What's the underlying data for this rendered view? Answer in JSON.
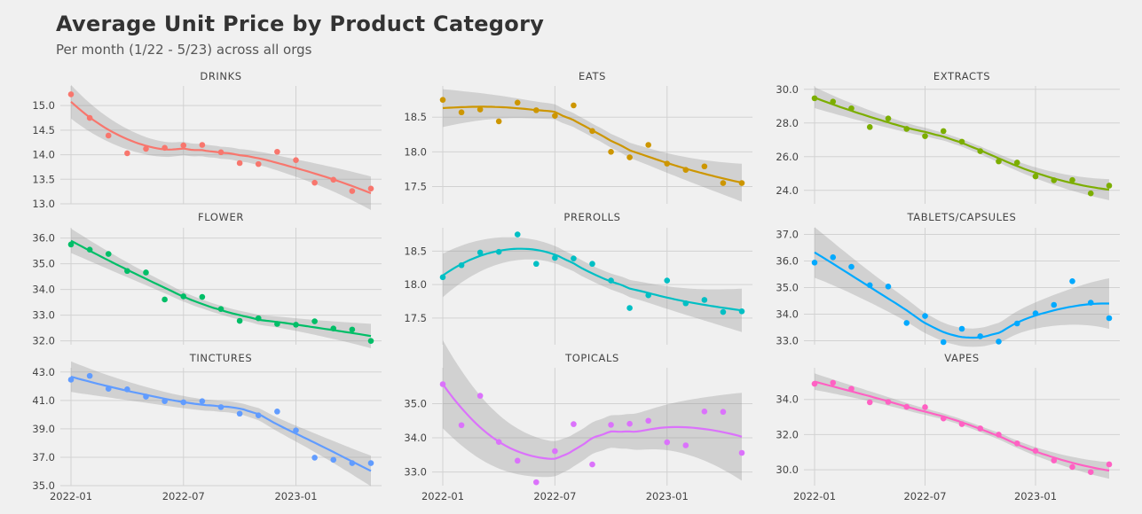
{
  "title": "Average Unit Price by Product Category",
  "subtitle": "Per month (1/22 - 5/23) across all orgs",
  "chart_data": {
    "type": "scatter",
    "x": [
      "2022-01",
      "2022-02",
      "2022-03",
      "2022-04",
      "2022-05",
      "2022-06",
      "2022-07",
      "2022-08",
      "2022-09",
      "2022-10",
      "2022-11",
      "2022-12",
      "2023-01",
      "2023-02",
      "2023-03",
      "2023-04",
      "2023-05"
    ],
    "xticks": [
      "2022-01",
      "2022-07",
      "2023-01"
    ],
    "grid": true,
    "smoother": "loess trend line with grey confidence band",
    "facets": [
      {
        "name": "DRINKS",
        "color": "#f8766d",
        "values": [
          15.23,
          14.75,
          14.39,
          14.03,
          14.12,
          14.14,
          14.19,
          14.2,
          14.05,
          13.83,
          13.81,
          14.06,
          13.89,
          13.43,
          13.49,
          13.26,
          13.31
        ],
        "ylim": [
          13.0,
          15.4
        ],
        "yticks": [
          13.0,
          13.5,
          14.0,
          14.5,
          15.0
        ],
        "ytick_labels": [
          "13.0",
          "13.5",
          "14.0",
          "14.5",
          "15.0"
        ]
      },
      {
        "name": "EATS",
        "color": "#cd9600",
        "values": [
          18.75,
          18.57,
          18.61,
          18.44,
          18.71,
          18.6,
          18.52,
          18.67,
          18.3,
          18.0,
          17.92,
          18.1,
          17.83,
          17.74,
          17.79,
          17.55,
          17.55
        ],
        "ylim": [
          17.25,
          18.95
        ],
        "yticks": [
          17.5,
          18.0,
          18.5
        ],
        "ytick_labels": [
          "17.5",
          "18.0",
          "18.5"
        ]
      },
      {
        "name": "EXTRACTS",
        "color": "#7cae00",
        "values": [
          29.47,
          29.27,
          28.87,
          27.76,
          28.27,
          27.65,
          27.22,
          27.52,
          26.89,
          26.33,
          25.72,
          25.65,
          24.83,
          24.6,
          24.61,
          23.82,
          24.28
        ],
        "ylim": [
          23.2,
          30.2
        ],
        "yticks": [
          24.0,
          26.0,
          28.0,
          30.0
        ],
        "ytick_labels": [
          "24.0",
          "26.0",
          "28.0",
          "30.0"
        ]
      },
      {
        "name": "FLOWER",
        "color": "#00be67",
        "values": [
          35.75,
          35.55,
          35.38,
          34.72,
          34.66,
          33.61,
          33.73,
          33.71,
          33.24,
          32.78,
          32.88,
          32.66,
          32.63,
          32.76,
          32.48,
          32.44,
          32.0
        ],
        "ylim": [
          31.85,
          36.4
        ],
        "yticks": [
          32.0,
          33.0,
          34.0,
          35.0,
          36.0
        ],
        "ytick_labels": [
          "32.0",
          "33.0",
          "34.0",
          "35.0",
          "36.0"
        ]
      },
      {
        "name": "PREROLLS",
        "color": "#00bfc4",
        "values": [
          18.11,
          18.29,
          18.48,
          18.49,
          18.75,
          18.31,
          18.4,
          18.39,
          18.31,
          18.06,
          17.65,
          17.84,
          18.06,
          17.72,
          17.77,
          17.59,
          17.6
        ],
        "ylim": [
          17.1,
          18.85
        ],
        "yticks": [
          17.5,
          18.0,
          18.5
        ],
        "ytick_labels": [
          "17.5",
          "18.0",
          "18.5"
        ]
      },
      {
        "name": "TABLETS/CAPSULES",
        "color": "#00a9ff",
        "values": [
          35.94,
          36.14,
          35.78,
          35.09,
          35.04,
          33.67,
          33.93,
          32.95,
          33.45,
          33.17,
          32.97,
          33.65,
          34.03,
          34.35,
          35.24,
          34.43,
          33.85
        ],
        "ylim": [
          32.85,
          37.25
        ],
        "yticks": [
          33.0,
          34.0,
          35.0,
          36.0,
          37.0
        ],
        "ytick_labels": [
          "33.0",
          "34.0",
          "35.0",
          "36.0",
          "37.0"
        ]
      },
      {
        "name": "TINCTURES",
        "color": "#619cff",
        "values": [
          42.46,
          42.73,
          41.82,
          41.78,
          41.27,
          40.95,
          40.87,
          40.95,
          40.53,
          40.07,
          39.95,
          40.22,
          38.89,
          36.97,
          36.82,
          36.59,
          36.59
        ],
        "ylim": [
          35.0,
          43.3
        ],
        "yticks": [
          35.0,
          37.0,
          39.0,
          41.0,
          43.0
        ],
        "ytick_labels": [
          "35.0",
          "37.0",
          "39.0",
          "41.0",
          "43.0"
        ]
      },
      {
        "name": "TOPICALS",
        "color": "#db72fb",
        "values": [
          35.57,
          34.37,
          35.23,
          33.88,
          33.33,
          32.7,
          33.61,
          34.4,
          33.22,
          34.38,
          34.41,
          34.5,
          33.87,
          33.78,
          34.77,
          34.76,
          33.56
        ],
        "ylim": [
          32.6,
          36.05
        ],
        "yticks": [
          33.0,
          34.0,
          35.0
        ],
        "ytick_labels": [
          "33.0",
          "34.0",
          "35.0"
        ]
      },
      {
        "name": "VAPES",
        "color": "#ff61c3",
        "values": [
          34.89,
          34.95,
          34.61,
          33.84,
          33.86,
          33.58,
          33.56,
          32.92,
          32.6,
          32.35,
          32.0,
          31.5,
          31.08,
          30.53,
          30.16,
          29.87,
          30.31
        ],
        "ylim": [
          29.1,
          35.8
        ],
        "yticks": [
          30.0,
          32.0,
          34.0
        ],
        "ytick_labels": [
          "30.0",
          "32.0",
          "34.0"
        ]
      }
    ]
  }
}
